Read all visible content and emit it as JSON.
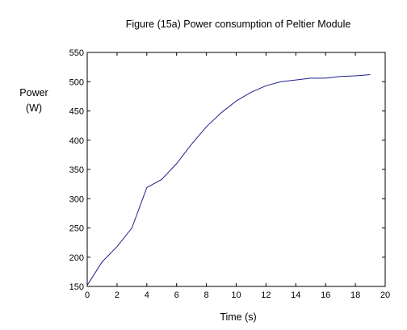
{
  "chart_data": {
    "type": "line",
    "title": "Figure (15a) Power consumption  of Peltier Module",
    "ylabel_lines": [
      "Power",
      "(W)"
    ],
    "xlabel": "Time (s)",
    "xlim": [
      0,
      20
    ],
    "ylim": [
      150,
      550
    ],
    "xticks": [
      0,
      2,
      4,
      6,
      8,
      10,
      12,
      14,
      16,
      18,
      20
    ],
    "yticks": [
      150,
      200,
      250,
      300,
      350,
      400,
      450,
      500,
      550
    ],
    "grid": false,
    "line_color": "#1f1f8f",
    "series": [
      {
        "x": [
          0,
          1,
          2,
          3,
          4,
          5,
          6,
          7,
          8,
          9,
          10,
          11,
          12,
          13,
          14,
          15,
          16,
          17,
          18,
          19
        ],
        "y": [
          152,
          192,
          218,
          250,
          319,
          333,
          360,
          393,
          423,
          447,
          467,
          482,
          493,
          500,
          503,
          506,
          506,
          509,
          510,
          512
        ]
      }
    ]
  }
}
